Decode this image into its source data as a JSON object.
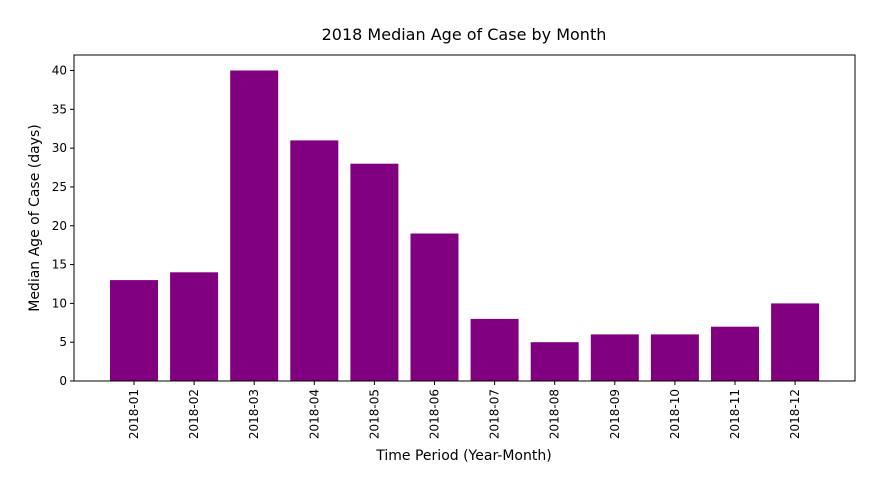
{
  "chart_data": {
    "type": "bar",
    "title": "2018 Median Age of Case by Month",
    "xlabel": "Time Period (Year-Month)",
    "ylabel": "Median Age of Case (days)",
    "categories": [
      "2018-01",
      "2018-02",
      "2018-03",
      "2018-04",
      "2018-05",
      "2018-06",
      "2018-07",
      "2018-08",
      "2018-09",
      "2018-10",
      "2018-11",
      "2018-12"
    ],
    "values": [
      13,
      14,
      40,
      31,
      28,
      19,
      8,
      5,
      6,
      6,
      7,
      10
    ],
    "ylim": [
      0,
      42
    ],
    "yticks": [
      0,
      5,
      10,
      15,
      20,
      25,
      30,
      35,
      40
    ],
    "bar_color": "#800080",
    "grid": false,
    "legend": false
  }
}
